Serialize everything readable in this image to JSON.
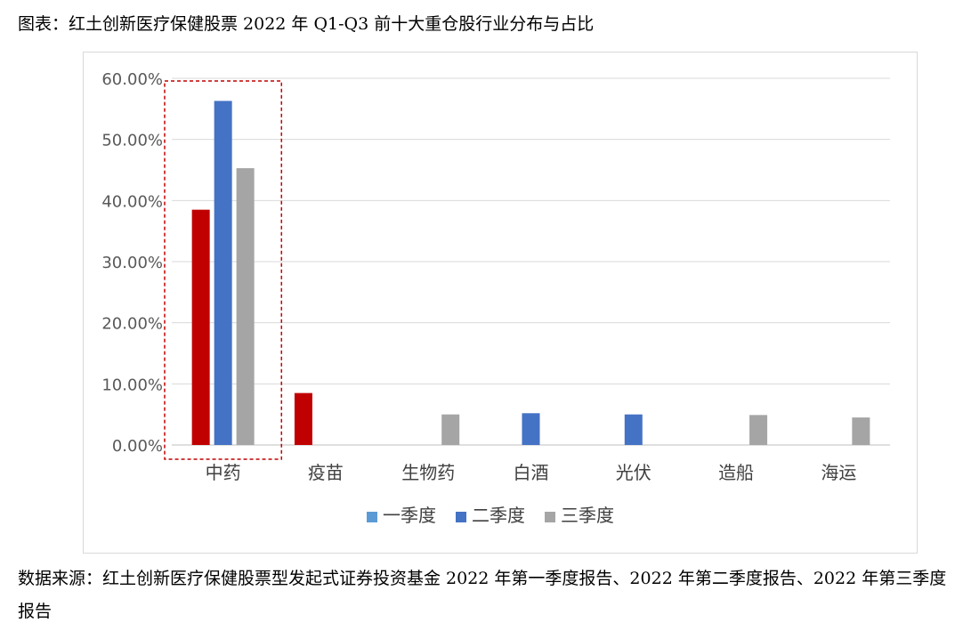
{
  "title": "图表：红土创新医疗保健股票 2022 年 Q1-Q3 前十大重仓股行业分布与占比",
  "source": "数据来源：红土创新医疗保健股票型发起式证券投资基金 2022 年第一季度报告、2022 年第二季度报告、2022 年第三季度报告",
  "chart_data": {
    "type": "bar",
    "categories": [
      "中药",
      "疫苗",
      "生物药",
      "白酒",
      "光伏",
      "造船",
      "海运"
    ],
    "series": [
      {
        "name": "一季度",
        "color": "#c00000",
        "values": [
          38.5,
          8.5,
          null,
          null,
          null,
          null,
          null
        ]
      },
      {
        "name": "二季度",
        "color": "#4472c4",
        "values": [
          56.3,
          null,
          null,
          5.2,
          5.0,
          null,
          null
        ]
      },
      {
        "name": "三季度",
        "color": "#a5a5a5",
        "values": [
          45.3,
          null,
          5.0,
          null,
          null,
          4.9,
          4.5
        ]
      }
    ],
    "legend_colors": [
      "#5b9bd5",
      "#4472c4",
      "#a5a5a5"
    ],
    "ylim": [
      0,
      60
    ],
    "yticks": [
      0,
      10,
      20,
      30,
      40,
      50,
      60
    ],
    "ytick_labels": [
      "0.00%",
      "10.00%",
      "20.00%",
      "30.00%",
      "40.00%",
      "50.00%",
      "60.00%"
    ],
    "grid": true,
    "legend_position": "bottom",
    "highlight_category": "中药",
    "highlight_color": "#c00000"
  }
}
